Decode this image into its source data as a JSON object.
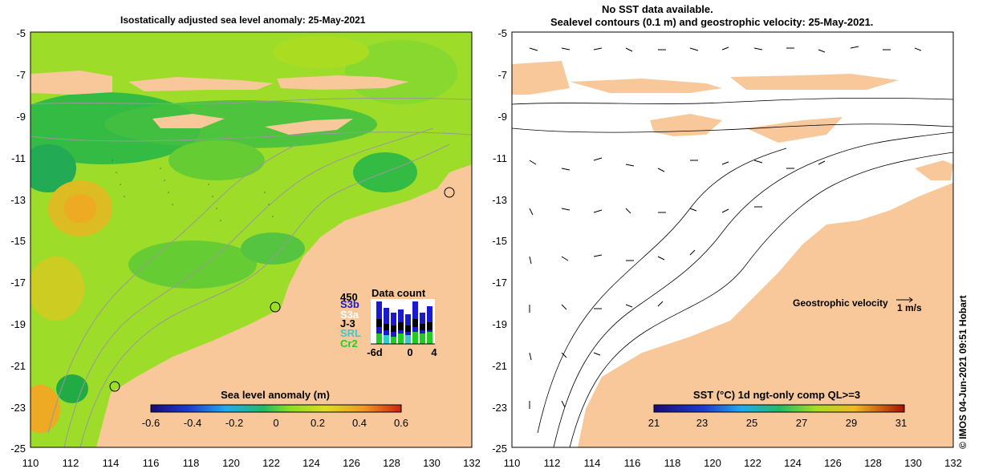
{
  "left_panel": {
    "title": "Isostatically adjusted sea level anomaly: 25-May-2021",
    "y_ticks": [
      "-5",
      "-7",
      "-9",
      "-11",
      "-13",
      "-15",
      "-17",
      "-19",
      "-21",
      "-23",
      "-25"
    ],
    "x_ticks": [
      "110",
      "112",
      "114",
      "116",
      "118",
      "120",
      "122",
      "124",
      "126",
      "128",
      "130",
      "132"
    ],
    "colorbar": {
      "label": "Sea level anomaly (m)",
      "ticks": [
        "-0.6",
        "-0.4",
        "-0.2",
        "0",
        "0.2",
        "0.4",
        "0.6"
      ]
    },
    "data_count": {
      "title": "Data count",
      "max_label": "450",
      "x_ticks": [
        "-6d",
        "0",
        "4"
      ],
      "legend": [
        {
          "name": "S3b",
          "color": "#1a1acc"
        },
        {
          "name": "S3a",
          "color": "#ffffff"
        },
        {
          "name": "J-3",
          "color": "#000000"
        },
        {
          "name": "SRL",
          "color": "#33cccc"
        },
        {
          "name": "Cr2",
          "color": "#22cc22"
        }
      ]
    }
  },
  "right_panel": {
    "title_line1": "No SST data available.",
    "title_line2": "Sealevel contours (0.1 m) and geostrophic velocity: 25-May-2021.",
    "y_ticks": [
      "-5",
      "-7",
      "-9",
      "-11",
      "-13",
      "-15",
      "-17",
      "-19",
      "-21",
      "-23",
      "-25"
    ],
    "x_ticks": [
      "110",
      "112",
      "114",
      "116",
      "118",
      "120",
      "122",
      "124",
      "126",
      "128",
      "130",
      "132"
    ],
    "velocity_legend": "Geostrophic velocity",
    "velocity_scale": "1 m/s",
    "colorbar": {
      "label": "SST (°C) 1d ngt-only comp QL>=3",
      "ticks": [
        "21",
        "23",
        "25",
        "27",
        "29",
        "31"
      ]
    }
  },
  "credit": "© IMOS 04-Jun-2021 09:51 Hobart",
  "colors": {
    "land": "#f8c89a",
    "sea_base": "#99dd33",
    "sea_dark": "#22bb44",
    "sea_warm": "#eebb22"
  }
}
